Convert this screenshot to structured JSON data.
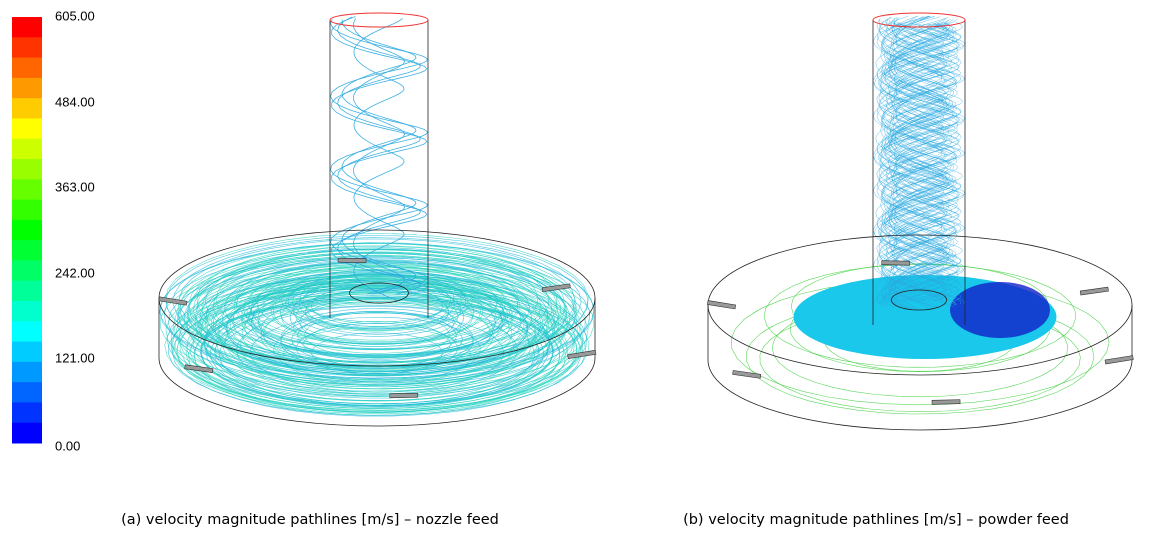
{
  "colorbar": {
    "labels": [
      "605.00",
      "484.00",
      "363.00",
      "242.00",
      "121.00",
      "0.00"
    ]
  },
  "panels": [
    {
      "caption": "(a) velocity magnitude pathlines [m/s] – nozzle feed"
    },
    {
      "caption": "(b) velocity magnitude pathlines [m/s] – powder feed"
    }
  ]
}
